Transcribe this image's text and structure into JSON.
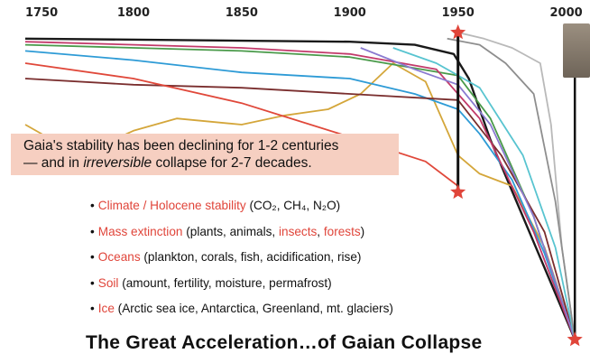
{
  "chart_data": {
    "type": "line",
    "x_ticks": [
      "1750",
      "1800",
      "1850",
      "1900",
      "1950",
      "2000"
    ],
    "xlim": [
      1750,
      2006
    ],
    "ylim": [
      0,
      100
    ],
    "grid": false,
    "series": [
      {
        "color": "#1a1a1a",
        "x": [
          1750,
          1900,
          1930,
          1948,
          1955,
          1965,
          1980,
          1995,
          2004
        ],
        "values": [
          98,
          97,
          96,
          93,
          85,
          65,
          40,
          15,
          0
        ]
      },
      {
        "color": "#d4a63a",
        "x": [
          1750,
          1775,
          1800,
          1820,
          1850,
          1870,
          1890,
          1905,
          1920,
          1935,
          1950,
          1960,
          1975,
          1990,
          2004
        ],
        "values": [
          70,
          60,
          68,
          72,
          70,
          73,
          75,
          80,
          90,
          84,
          60,
          54,
          50,
          30,
          0
        ]
      },
      {
        "color": "#2e9bd6",
        "x": [
          1750,
          1800,
          1850,
          1900,
          1930,
          1950,
          1960,
          1975,
          1990,
          2004
        ],
        "values": [
          94,
          91,
          87,
          85,
          80,
          75,
          67,
          52,
          28,
          0
        ]
      },
      {
        "color": "#4a9a4a",
        "x": [
          1750,
          1850,
          1900,
          1950,
          1965,
          1985,
          2004
        ],
        "values": [
          96,
          94,
          92,
          86,
          72,
          40,
          0
        ]
      },
      {
        "color": "#7a2e2e",
        "x": [
          1750,
          1800,
          1850,
          1900,
          1950,
          1970,
          1990,
          2004
        ],
        "values": [
          85,
          83,
          82,
          80,
          78,
          60,
          35,
          0
        ]
      },
      {
        "color": "#c23a6a",
        "x": [
          1750,
          1850,
          1900,
          1940,
          1960,
          1985,
          2004
        ],
        "values": [
          97,
          95,
          93,
          88,
          72,
          35,
          0
        ]
      },
      {
        "color": "#e0483a",
        "x": [
          1750,
          1800,
          1850,
          1900,
          1935,
          1950
        ],
        "values": [
          90,
          85,
          77,
          66,
          58,
          50
        ]
      },
      {
        "color": "#8a7ad0",
        "x": [
          1905,
          1930,
          1950,
          1965,
          1985,
          2004
        ],
        "values": [
          95,
          88,
          83,
          70,
          40,
          0
        ]
      },
      {
        "color": "#58c4d0",
        "x": [
          1920,
          1940,
          1960,
          1980,
          1995,
          2004
        ],
        "values": [
          95,
          90,
          82,
          60,
          30,
          0
        ]
      },
      {
        "color": "#b9b9b9",
        "x": [
          1950,
          1962,
          1975,
          1988,
          1993,
          1998,
          2004
        ],
        "values": [
          100,
          98,
          95,
          90,
          70,
          30,
          0
        ]
      },
      {
        "color": "#8e8e8e",
        "x": [
          1945,
          1960,
          1972,
          1985,
          1995,
          2004
        ],
        "values": [
          98,
          96,
          90,
          80,
          45,
          0
        ]
      }
    ],
    "markers": [
      {
        "x": 1950,
        "y": 100
      },
      {
        "x": 1950,
        "y": 48
      },
      {
        "x": 2004,
        "y": 0
      }
    ],
    "annotations": [
      "Gaia's stability has been declining for 1-2 centuries",
      "— and in irreversible collapse for 2-7 decades."
    ]
  },
  "callout": {
    "line1": "Gaia's stability has been declining for 1-2 centuries",
    "line2_before": "— and in ",
    "line2_em": "irreversible",
    "line2_after": " collapse for 2-7 decades."
  },
  "bullets": [
    {
      "label": "Climate / Holocene stability",
      "detail_a": " (CO₂, CH₄, N₂O)"
    },
    {
      "label": "Mass extinction",
      "detail_a": " (plants, animals, ",
      "red_b": "insects",
      "detail_b": ", ",
      "red_c": "forests",
      "detail_c": ")"
    },
    {
      "label": "Oceans",
      "detail_a": " (plankton, corals, fish, acidification, rise)"
    },
    {
      "label": "Soil",
      "detail_a": " (amount, fertility, moisture, permafrost)"
    },
    {
      "label": "Ice",
      "detail_a": " (Arctic sea ice, Antarctica, Greenland, mt. glaciers)"
    }
  ],
  "bullet_symbol": "•",
  "footer_title": "The Great Acceleration…of Gaian Collapse",
  "colors": {
    "accent_red": "#e0453a",
    "callout_bg": "#f6cfc1"
  }
}
